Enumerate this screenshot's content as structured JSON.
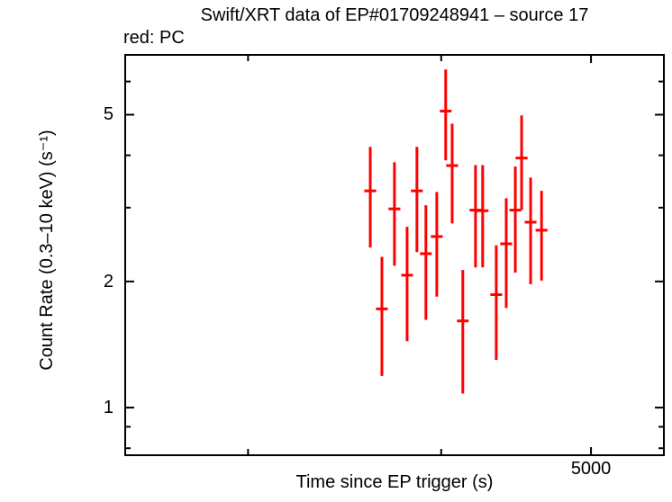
{
  "header": {
    "title": "Swift/XRT data of EP#01709248941 – source 17",
    "legend": "red: PC"
  },
  "colors": {
    "pc_series": "#ff0000",
    "axis": "#000000",
    "text": "#000000",
    "background": "#ffffff"
  },
  "chart_data": {
    "type": "scatter",
    "subtype": "errorbar-light-curve",
    "title": "Swift/XRT data of EP#01709248941 – source 17",
    "legend_note": "red: PC",
    "xlabel": "Time since EP trigger (s)",
    "ylabel": "Count Rate (0.3–10 keV) (s⁻¹)",
    "x_scale": "log",
    "y_scale": "log",
    "xlim": [
      2495,
      5581
    ],
    "ylim": [
      0.766,
      6.98
    ],
    "grid": false,
    "legend_position": "top-left-above-frame",
    "x_ticks": [
      {
        "value": 3000,
        "label": "",
        "labeled": false
      },
      {
        "value": 4000,
        "label": "",
        "labeled": false
      },
      {
        "value": 5000,
        "label": "5000",
        "labeled": true
      }
    ],
    "y_ticks": [
      {
        "value": 0.8,
        "label": "",
        "labeled": false
      },
      {
        "value": 0.9,
        "label": "",
        "labeled": false
      },
      {
        "value": 1,
        "label": "1",
        "labeled": true
      },
      {
        "value": 2,
        "label": "2",
        "labeled": true
      },
      {
        "value": 3,
        "label": "",
        "labeled": false
      },
      {
        "value": 4,
        "label": "",
        "labeled": false
      },
      {
        "value": 5,
        "label": "5",
        "labeled": true
      },
      {
        "value": 6,
        "label": "",
        "labeled": false
      }
    ],
    "series": [
      {
        "name": "PC",
        "color": "#ff0000",
        "marker": "cross-with-error-bars",
        "points": [
          {
            "t": 3599,
            "terr": 32,
            "rate": 3.29,
            "rate_hi": 4.19,
            "rate_lo": 2.41
          },
          {
            "t": 3662,
            "terr": 32,
            "rate": 1.72,
            "rate_hi": 2.29,
            "rate_lo": 1.19
          },
          {
            "t": 3731,
            "terr": 33,
            "rate": 2.98,
            "rate_hi": 3.85,
            "rate_lo": 2.18
          },
          {
            "t": 3802,
            "terr": 33,
            "rate": 2.07,
            "rate_hi": 2.7,
            "rate_lo": 1.44
          },
          {
            "t": 3858,
            "terr": 34,
            "rate": 3.29,
            "rate_hi": 4.19,
            "rate_lo": 2.35
          },
          {
            "t": 3910,
            "terr": 34,
            "rate": 2.33,
            "rate_hi": 3.04,
            "rate_lo": 1.62
          },
          {
            "t": 3974,
            "terr": 35,
            "rate": 2.56,
            "rate_hi": 3.27,
            "rate_lo": 1.84
          },
          {
            "t": 4027,
            "terr": 35,
            "rate": 5.1,
            "rate_hi": 6.41,
            "rate_lo": 3.89
          },
          {
            "t": 4066,
            "terr": 36,
            "rate": 3.78,
            "rate_hi": 4.76,
            "rate_lo": 2.75
          },
          {
            "t": 4131,
            "terr": 36,
            "rate": 1.61,
            "rate_hi": 2.13,
            "rate_lo": 1.08
          },
          {
            "t": 4210,
            "terr": 37,
            "rate": 2.96,
            "rate_hi": 3.79,
            "rate_lo": 2.16
          },
          {
            "t": 4255,
            "terr": 37,
            "rate": 2.95,
            "rate_hi": 3.79,
            "rate_lo": 2.16
          },
          {
            "t": 4342,
            "terr": 38,
            "rate": 1.86,
            "rate_hi": 2.44,
            "rate_lo": 1.3
          },
          {
            "t": 4407,
            "terr": 39,
            "rate": 2.46,
            "rate_hi": 3.16,
            "rate_lo": 1.73
          },
          {
            "t": 4467,
            "terr": 39,
            "rate": 2.96,
            "rate_hi": 3.76,
            "rate_lo": 2.1
          },
          {
            "t": 4509,
            "terr": 40,
            "rate": 3.94,
            "rate_hi": 4.98,
            "rate_lo": 2.96
          },
          {
            "t": 4570,
            "terr": 40,
            "rate": 2.77,
            "rate_hi": 3.54,
            "rate_lo": 1.97
          },
          {
            "t": 4645,
            "terr": 41,
            "rate": 2.65,
            "rate_hi": 3.29,
            "rate_lo": 2.01
          }
        ]
      }
    ]
  }
}
